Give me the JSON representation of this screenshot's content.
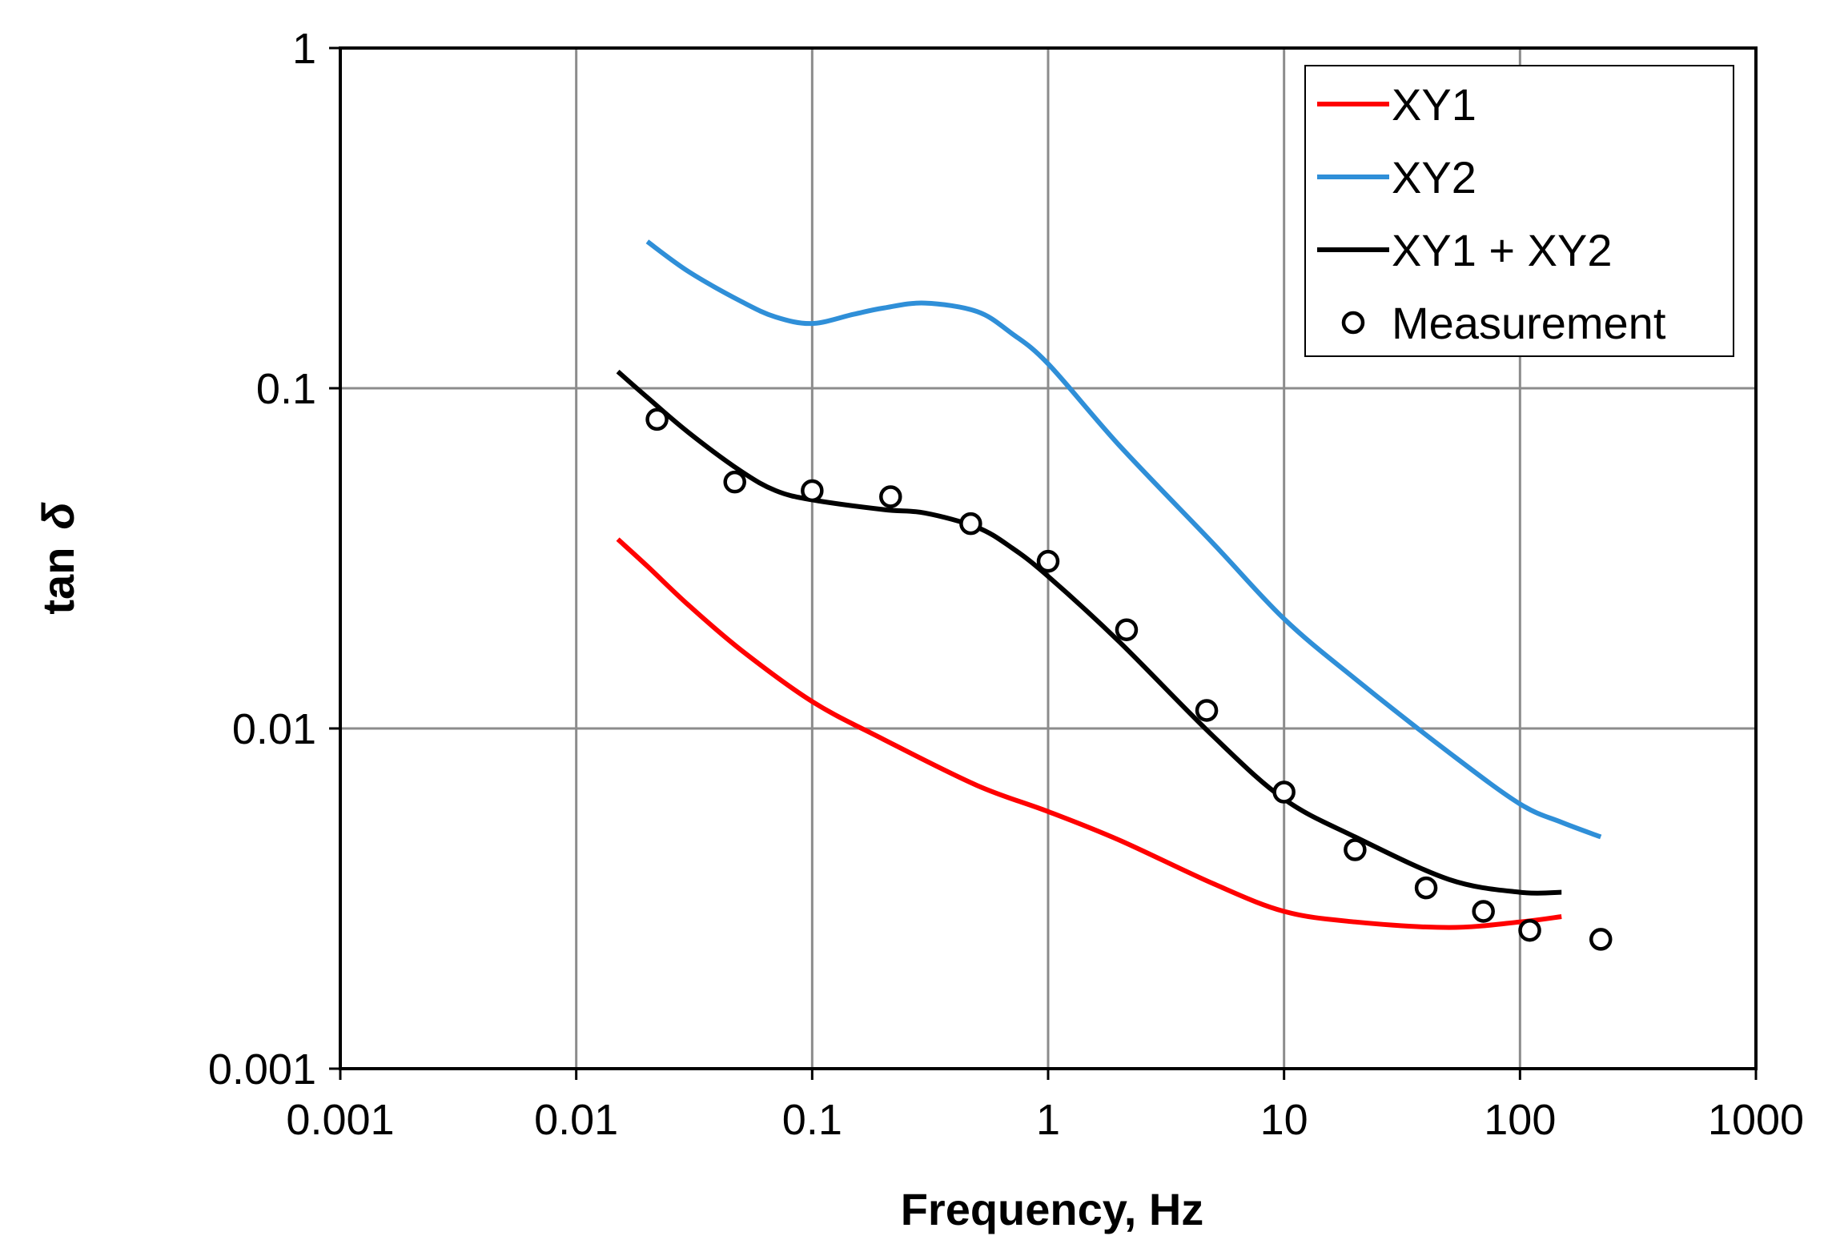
{
  "chart_data": {
    "type": "line",
    "title": "",
    "xlabel": "Frequency, Hz",
    "ylabel_main": "tan",
    "ylabel_symbol": "δ",
    "xscale": "log",
    "yscale": "log",
    "xlim": [
      0.001,
      1000
    ],
    "ylim": [
      0.001,
      1
    ],
    "grid": true,
    "legend_position": "top-right",
    "x_ticks": [
      {
        "value": 0.001,
        "label": "0.001"
      },
      {
        "value": 0.01,
        "label": "0.01"
      },
      {
        "value": 0.1,
        "label": "0.1"
      },
      {
        "value": 1,
        "label": "1"
      },
      {
        "value": 10,
        "label": "10"
      },
      {
        "value": 100,
        "label": "100"
      },
      {
        "value": 1000,
        "label": "1000"
      }
    ],
    "y_ticks": [
      {
        "value": 0.001,
        "label": "0.001"
      },
      {
        "value": 0.01,
        "label": "0.01"
      },
      {
        "value": 0.1,
        "label": "0.1"
      },
      {
        "value": 1,
        "label": "1"
      }
    ],
    "series": [
      {
        "name": "XY1",
        "kind": "line",
        "color": "#ff0000",
        "x": [
          0.015,
          0.02,
          0.03,
          0.05,
          0.1,
          0.2,
          0.5,
          1,
          2,
          5,
          10,
          20,
          50,
          100,
          150
        ],
        "y": [
          0.036,
          0.03,
          0.023,
          0.017,
          0.012,
          0.0093,
          0.0068,
          0.0057,
          0.0047,
          0.0035,
          0.0029,
          0.0027,
          0.0026,
          0.0027,
          0.0028
        ]
      },
      {
        "name": "XY2",
        "kind": "line",
        "color": "#2f8fd8",
        "x": [
          0.02,
          0.03,
          0.05,
          0.07,
          0.1,
          0.15,
          0.2,
          0.3,
          0.5,
          0.7,
          1,
          2,
          5,
          10,
          20,
          50,
          100,
          150,
          220
        ],
        "y": [
          0.27,
          0.22,
          0.18,
          0.162,
          0.155,
          0.165,
          0.172,
          0.178,
          0.168,
          0.145,
          0.118,
          0.068,
          0.035,
          0.021,
          0.014,
          0.0085,
          0.006,
          0.0053,
          0.0048
        ]
      },
      {
        "name": "XY1 + XY2",
        "kind": "line",
        "color": "#000000",
        "x": [
          0.015,
          0.02,
          0.03,
          0.05,
          0.07,
          0.1,
          0.2,
          0.3,
          0.5,
          0.7,
          1,
          2,
          5,
          10,
          20,
          50,
          100,
          150
        ],
        "y": [
          0.112,
          0.094,
          0.074,
          0.057,
          0.05,
          0.047,
          0.044,
          0.043,
          0.039,
          0.034,
          0.028,
          0.018,
          0.0095,
          0.0062,
          0.0048,
          0.0036,
          0.0033,
          0.0033
        ]
      },
      {
        "name": "Measurement",
        "kind": "markers",
        "color": "#000000",
        "x": [
          0.022,
          0.047,
          0.1,
          0.215,
          0.47,
          1,
          2.15,
          4.7,
          10,
          20,
          40,
          70,
          110,
          220
        ],
        "y": [
          0.081,
          0.053,
          0.05,
          0.048,
          0.04,
          0.031,
          0.0195,
          0.0113,
          0.0065,
          0.0044,
          0.0034,
          0.0029,
          0.00255,
          0.0024
        ]
      }
    ]
  }
}
